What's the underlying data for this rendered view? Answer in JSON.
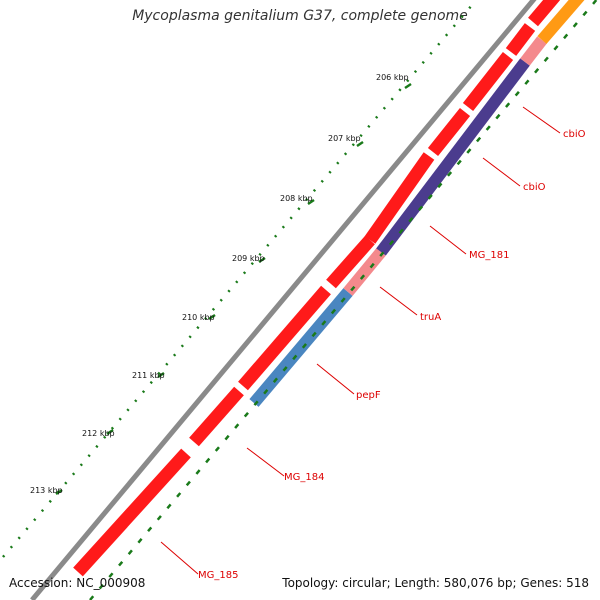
{
  "header": {
    "title": "Mycoplasma genitalium G37, complete genome"
  },
  "footer": {
    "accession": "Accession: NC_000908",
    "summary": "Topology: circular; Length: 580,076 bp; Genes: 518"
  },
  "colors": {
    "forward_gene": "#ff1a1a",
    "label_line": "#dd0000",
    "ticks": "#1a7a1a",
    "backbone": "#8a8a8a",
    "purple_gene": "#4b3c8e",
    "pink_gene": "#f4898c",
    "blue_gene": "#4a86c0",
    "orange_gene": "#ff9a14"
  },
  "axis": {
    "tick_labels": [
      "206 kbp",
      "207 kbp",
      "208 kbp",
      "209 kbp",
      "210 kbp",
      "211 kbp",
      "212 kbp",
      "213 kbp"
    ]
  },
  "genes": [
    {
      "name": "cbiO",
      "strand": "reverse",
      "color": "purple"
    },
    {
      "name": "cbiO",
      "strand": "reverse",
      "color": "purple"
    },
    {
      "name": "MG_181",
      "strand": "reverse",
      "color": "purple"
    },
    {
      "name": "truA",
      "strand": "reverse",
      "color": "pink"
    },
    {
      "name": "pepF",
      "strand": "reverse",
      "color": "blue"
    },
    {
      "name": "MG_184",
      "strand": "forward",
      "color": "red"
    },
    {
      "name": "MG_185",
      "strand": "forward",
      "color": "red"
    }
  ]
}
